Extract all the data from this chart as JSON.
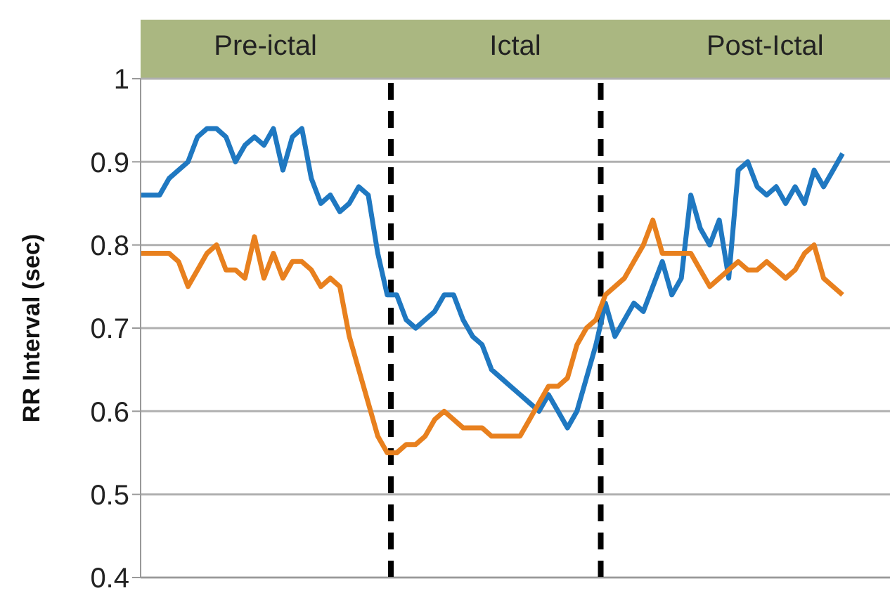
{
  "chart_data": {
    "type": "line",
    "ylabel": "RR Interval (sec)",
    "annotations": [
      "Pre-ictal",
      "Ictal",
      "Post-Ictal"
    ],
    "categories": [
      null,
      null,
      null,
      null,
      null,
      null,
      null,
      null,
      null,
      null,
      null,
      null,
      null,
      null,
      null,
      null,
      null,
      null,
      null,
      null,
      null,
      null,
      null,
      null,
      null,
      null,
      null,
      null,
      null,
      null,
      null,
      null,
      null,
      null,
      null,
      null,
      null,
      null,
      null,
      null,
      null,
      null,
      null,
      null,
      null,
      null,
      null,
      null,
      null,
      null,
      null,
      null,
      null,
      null,
      null,
      null,
      null,
      null,
      null,
      null,
      null,
      null,
      null,
      null,
      null,
      null,
      null,
      null,
      null,
      null,
      null,
      null,
      null,
      null,
      null,
      null,
      null,
      null,
      null,
      null
    ],
    "ylim": [
      0.4,
      1
    ],
    "yticks": [
      0.4,
      0.5,
      0.6,
      0.7,
      0.8,
      0.9,
      1
    ],
    "tick_labels": "y",
    "grid": "y",
    "legend": false,
    "line_style": "solid",
    "marker": "none",
    "series": [
      {
        "color": "#1f78c1",
        "values": [
          0.86,
          0.86,
          0.86,
          0.88,
          0.89,
          0.9,
          0.93,
          0.94,
          0.94,
          0.93,
          0.9,
          0.92,
          0.93,
          0.92,
          0.94,
          0.89,
          0.93,
          0.94,
          0.88,
          0.85,
          0.86,
          0.84,
          0.85,
          0.87,
          0.86,
          0.79,
          0.74,
          0.74,
          0.71,
          0.7,
          0.71,
          0.72,
          0.74,
          0.74,
          0.71,
          0.69,
          0.68,
          0.65,
          0.64,
          0.63,
          0.62,
          0.61,
          0.6,
          0.62,
          0.6,
          0.58,
          0.6,
          0.64,
          0.68,
          0.73,
          0.69,
          0.71,
          0.73,
          0.72,
          0.75,
          0.78,
          0.74,
          0.76,
          0.86,
          0.82,
          0.8,
          0.83,
          0.76,
          0.89,
          0.9,
          0.87,
          0.86,
          0.87,
          0.85,
          0.87,
          0.85,
          0.89,
          0.87,
          0.89,
          0.91,
          null,
          null,
          null,
          null,
          null
        ]
      },
      {
        "color": "#e8801e",
        "values": [
          0.79,
          0.79,
          0.79,
          0.79,
          0.78,
          0.75,
          0.77,
          0.79,
          0.8,
          0.77,
          0.77,
          0.76,
          0.81,
          0.76,
          0.79,
          0.76,
          0.78,
          0.78,
          0.77,
          0.75,
          0.76,
          0.75,
          0.69,
          0.65,
          0.61,
          0.57,
          0.55,
          0.55,
          0.56,
          0.56,
          0.57,
          0.59,
          0.6,
          0.59,
          0.58,
          0.58,
          0.58,
          0.57,
          0.57,
          0.57,
          0.57,
          0.59,
          0.61,
          0.63,
          0.63,
          0.64,
          0.68,
          0.7,
          0.71,
          0.74,
          0.75,
          0.76,
          0.78,
          0.8,
          0.83,
          0.79,
          0.79,
          0.79,
          0.79,
          0.77,
          0.75,
          0.76,
          0.77,
          0.78,
          0.77,
          0.77,
          0.78,
          0.77,
          0.76,
          0.77,
          0.79,
          0.8,
          0.76,
          0.75,
          0.74,
          null,
          null,
          null,
          null,
          null
        ]
      }
    ]
  }
}
